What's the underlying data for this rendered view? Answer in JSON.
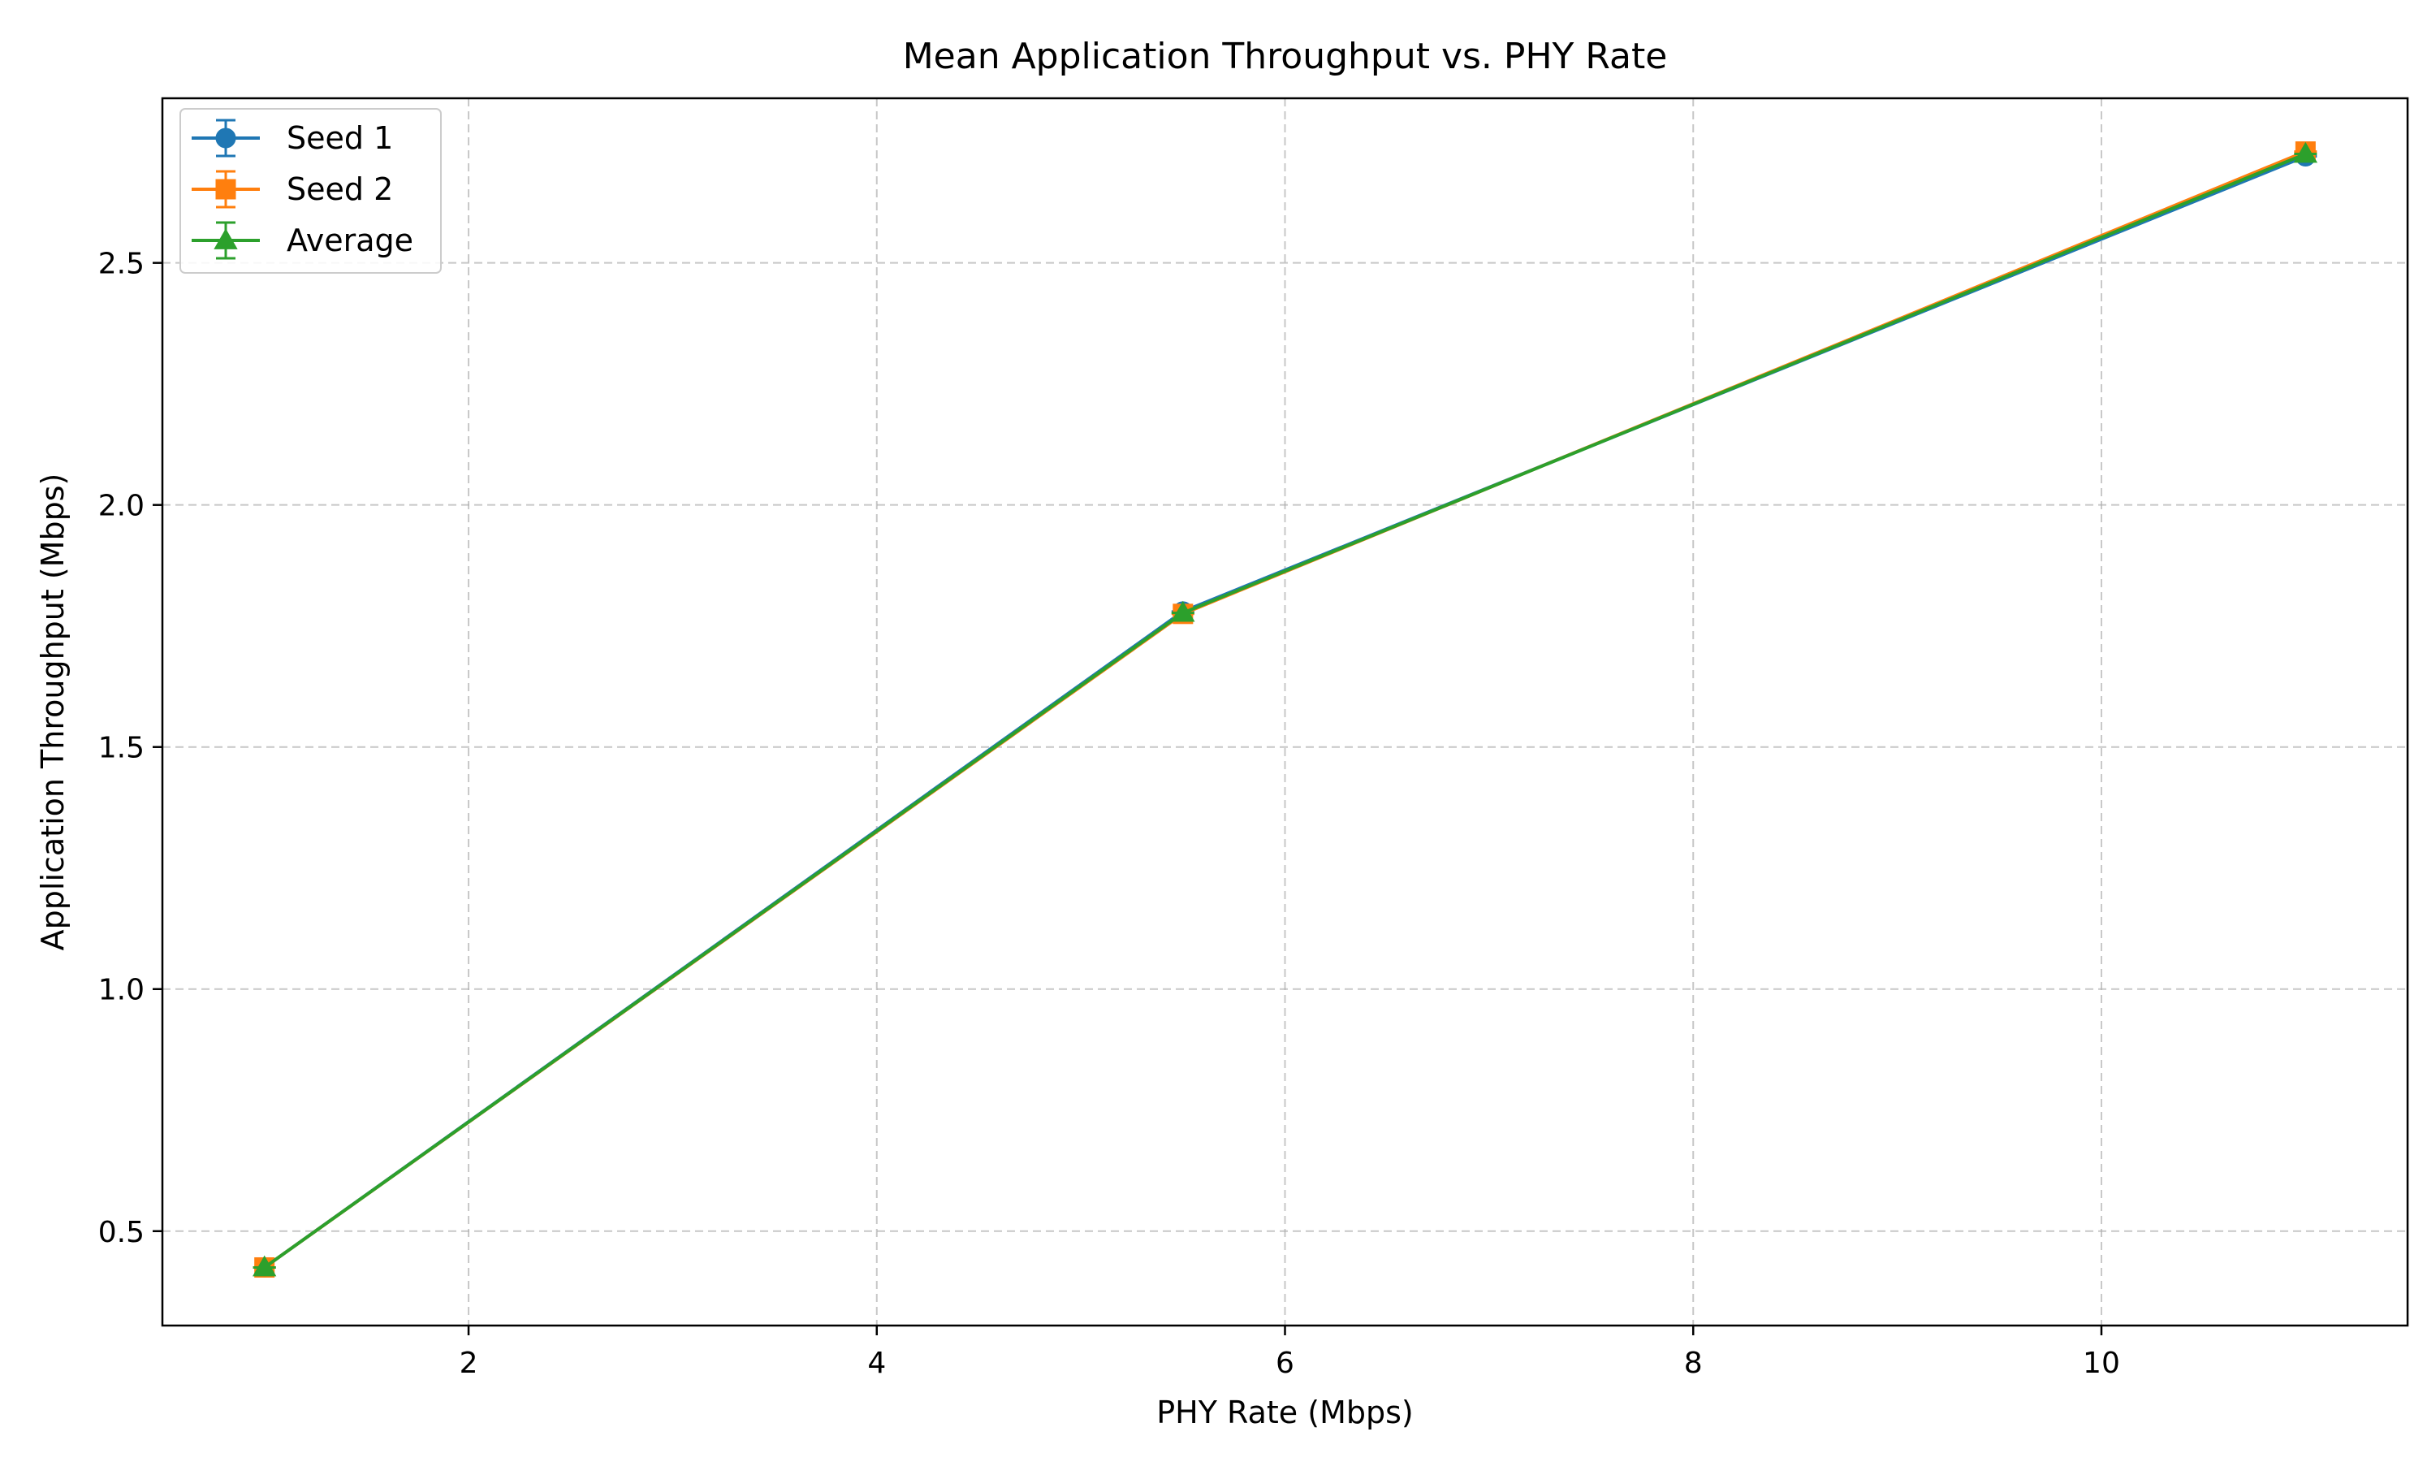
{
  "chart_data": {
    "type": "line",
    "title": "Mean Application Throughput vs. PHY Rate",
    "xlabel": "PHY Rate (Mbps)",
    "ylabel": "Application Throughput (Mbps)",
    "xlim": [
      0.5,
      11.5
    ],
    "ylim": [
      0.305,
      2.84
    ],
    "xticks": [
      2,
      4,
      6,
      8,
      10
    ],
    "yticks": [
      0.5,
      1.0,
      1.5,
      2.0,
      2.5
    ],
    "xtick_labels": [
      "2",
      "4",
      "6",
      "8",
      "10"
    ],
    "ytick_labels": [
      "0.5",
      "1.0",
      "1.5",
      "2.0",
      "2.5"
    ],
    "grid": true,
    "legend_position": "top-left",
    "x": [
      1,
      5.5,
      11
    ],
    "series": [
      {
        "name": "Seed 1",
        "values": [
          0.425,
          1.78,
          2.72
        ],
        "color": "#1f77b4",
        "marker": "circle"
      },
      {
        "name": "Seed 2",
        "values": [
          0.425,
          1.775,
          2.73
        ],
        "color": "#ff7f0e",
        "marker": "square"
      },
      {
        "name": "Average",
        "values": [
          0.425,
          1.777,
          2.725
        ],
        "color": "#2ca02c",
        "marker": "triangle"
      }
    ]
  }
}
